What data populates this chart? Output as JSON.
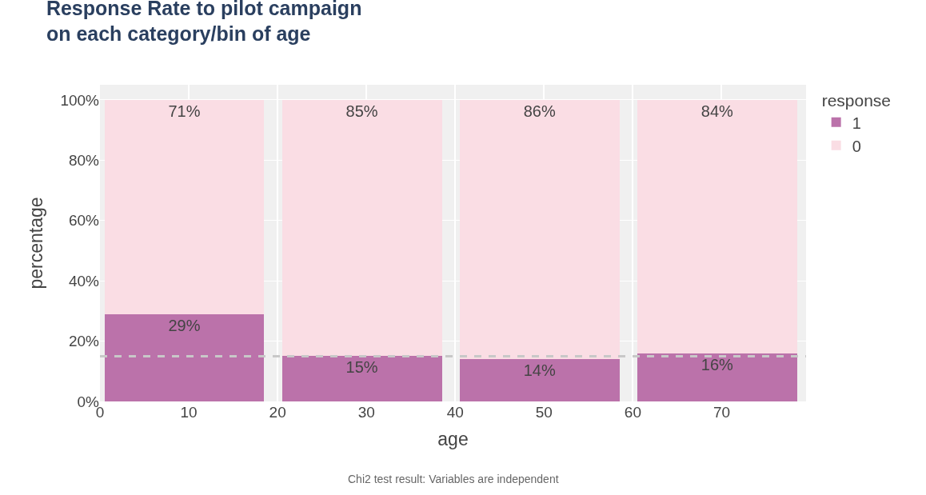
{
  "chart_data": {
    "type": "bar",
    "title": "Response Rate to pilot campaign\non each category/bin of age",
    "xlabel": "age",
    "ylabel": "percentage",
    "legend_title": "response",
    "x": [
      9.5,
      29.5,
      49.5,
      69.5
    ],
    "stacked": true,
    "series": [
      {
        "name": "1",
        "color": "#bb72aa",
        "values": [
          29,
          15,
          14,
          16
        ],
        "value_labels": [
          "29%",
          "15%",
          "14%",
          "16%"
        ]
      },
      {
        "name": "0",
        "color": "#fadde4",
        "values": [
          71,
          85,
          86,
          84
        ],
        "value_labels": [
          "71%",
          "85%",
          "86%",
          "84%"
        ]
      }
    ],
    "xlim": [
      0,
      79.5
    ],
    "xticks": [
      0,
      10,
      20,
      30,
      40,
      50,
      60,
      70
    ],
    "ylim": [
      0,
      105
    ],
    "yticks": [
      {
        "value": 0,
        "label": "0%"
      },
      {
        "value": 20,
        "label": "20%"
      },
      {
        "value": 40,
        "label": "40%"
      },
      {
        "value": 60,
        "label": "60%"
      },
      {
        "value": 80,
        "label": "80%"
      },
      {
        "value": 100,
        "label": "100%"
      }
    ],
    "ref_lines": [
      {
        "axis": "y",
        "value": 15,
        "color": "#c8c8c8",
        "line_style": "dashed"
      }
    ],
    "annotations": [
      "Chi2 test result: Variables are independent"
    ],
    "grid": true,
    "legend": "top right"
  }
}
